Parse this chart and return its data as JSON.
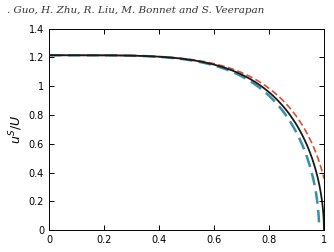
{
  "title_text": ". Guo, H. Zhu, R. Liu, M. Bonnet and S. Veerapan",
  "ylabel": "$u^S/U$",
  "xlabel": "",
  "xlim": [
    0,
    1.0
  ],
  "ylim": [
    0,
    1.4
  ],
  "xticks": [
    0,
    0.2,
    0.4,
    0.6,
    0.8,
    1.0
  ],
  "yticks": [
    0,
    0.2,
    0.4,
    0.6,
    0.8,
    1.0,
    1.2,
    1.4
  ],
  "bg_color": "#ffffff",
  "plot_bg_color": "#ffffff",
  "line_color_black": "#1a1a1a",
  "line_color_red": "#d94f3a",
  "line_color_cyan": "#3a8fa8",
  "amplitude": 1.215,
  "curve_power": 4.5,
  "curve_exp": 0.52,
  "title_fontsize": 7.5,
  "tick_fontsize": 7,
  "ylabel_fontsize": 9
}
